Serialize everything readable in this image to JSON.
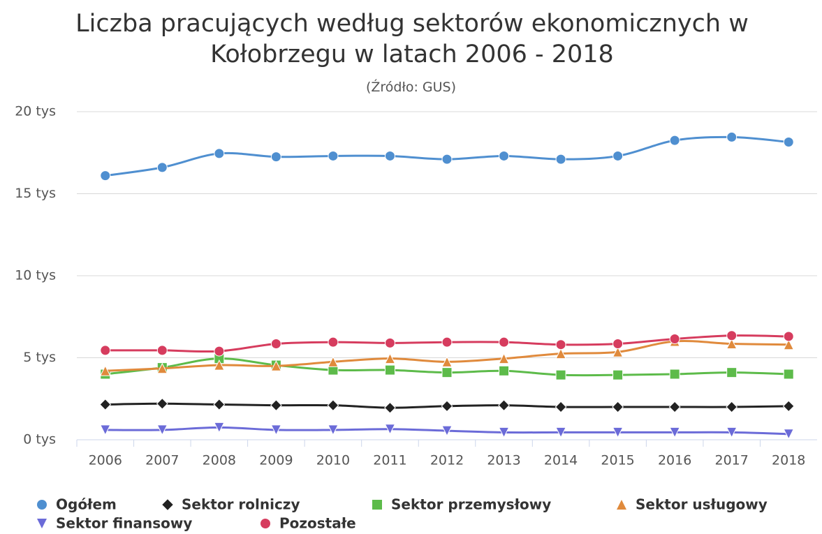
{
  "chart_data": {
    "type": "line",
    "smooth": true,
    "title": "Liczba pracujących według sektorów ekonomicznych w Kołobrzegu w latach 2006 - 2018",
    "subtitle": "(Źródło: GUS)",
    "categories": [
      "2006",
      "2007",
      "2008",
      "2009",
      "2010",
      "2011",
      "2012",
      "2013",
      "2014",
      "2015",
      "2016",
      "2017",
      "2018"
    ],
    "ylim": [
      0,
      20000
    ],
    "yticks": [
      {
        "value": 0,
        "label": "0 tys"
      },
      {
        "value": 5000,
        "label": "5 tys"
      },
      {
        "value": 10000,
        "label": "10 tys"
      },
      {
        "value": 15000,
        "label": "15 tys"
      },
      {
        "value": 20000,
        "label": "20 tys"
      }
    ],
    "grid": true,
    "legend": "bottom",
    "series": [
      {
        "name": "Ogółem",
        "color": "#4f8fd0",
        "marker": "circle",
        "values": [
          16100,
          16600,
          17450,
          17250,
          17300,
          17300,
          17100,
          17300,
          17100,
          17300,
          18250,
          18450,
          18150
        ]
      },
      {
        "name": "Sektor rolniczy",
        "color": "#222222",
        "marker": "diamond",
        "values": [
          2150,
          2200,
          2150,
          2100,
          2100,
          1950,
          2050,
          2100,
          2000,
          2000,
          2000,
          2000,
          2050
        ]
      },
      {
        "name": "Sektor przemysłowy",
        "color": "#5dbb4a",
        "marker": "square",
        "values": [
          4000,
          4400,
          4950,
          4550,
          4250,
          4250,
          4100,
          4200,
          3950,
          3950,
          4000,
          4100,
          4000
        ]
      },
      {
        "name": "Sektor usługowy",
        "color": "#e08a3c",
        "marker": "triangle",
        "values": [
          4200,
          4350,
          4550,
          4500,
          4750,
          4950,
          4750,
          4950,
          5250,
          5350,
          6000,
          5850,
          5800
        ]
      },
      {
        "name": "Sektor finansowy",
        "color": "#6b6bd8",
        "marker": "triangle-down",
        "values": [
          600,
          600,
          750,
          600,
          600,
          650,
          550,
          450,
          450,
          450,
          450,
          450,
          350
        ]
      },
      {
        "name": "Pozostałe",
        "color": "#d63c5e",
        "marker": "circle",
        "values": [
          5450,
          5450,
          5400,
          5850,
          5950,
          5900,
          5950,
          5950,
          5800,
          5850,
          6150,
          6350,
          6300
        ]
      }
    ]
  }
}
